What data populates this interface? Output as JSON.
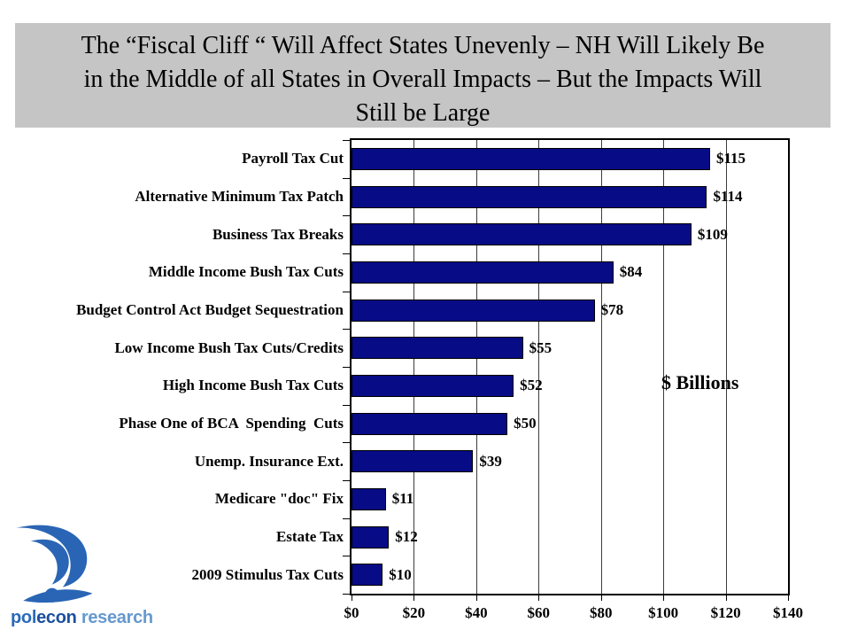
{
  "slide": {
    "title_lines": [
      "The “Fiscal Cliff “ Will Affect States Unevenly – NH Will Likely Be",
      "in the Middle of all States in Overall Impacts – But the Impacts Will",
      "Still be Large"
    ],
    "title_bg_color": "#c5c5c5"
  },
  "chart_data": {
    "type": "bar",
    "orientation": "horizontal",
    "title": "",
    "xlabel": "",
    "ylabel": "",
    "categories": [
      "Payroll Tax Cut",
      "Alternative Minimum Tax Patch",
      "Business Tax Breaks",
      "Middle Income Bush Tax Cuts",
      "Budget Control Act Budget Sequestration",
      "Low Income Bush Tax Cuts/Credits",
      "High Income Bush Tax Cuts",
      "Phase One of BCA  Spending  Cuts",
      "Unemp. Insurance Ext.",
      "Medicare \"doc\" Fix",
      "Estate Tax",
      "2009 Stimulus Tax Cuts"
    ],
    "values": [
      115,
      114,
      109,
      84,
      78,
      55,
      52,
      50,
      39,
      11,
      12,
      10
    ],
    "value_labels": [
      "$115",
      "$114",
      "$109",
      "$84",
      "$78",
      "$55",
      "$52",
      "$50",
      "$39",
      "$11",
      "$12",
      "$10"
    ],
    "x_tick_labels": [
      "$0",
      "$20",
      "$40",
      "$60",
      "$80",
      "$100",
      "$120",
      "$140"
    ],
    "xlim": [
      0,
      140
    ],
    "x_tick_step": 20,
    "annotation": "$ Billions",
    "bar_color": "#070b86",
    "grid": true,
    "legend_position": "none"
  },
  "logo": {
    "parts": [
      {
        "text": "pol",
        "color": "#2a6ab8"
      },
      {
        "text": "econ",
        "color": "#1c4f9e"
      },
      {
        "text": " research",
        "color": "#6699cf"
      }
    ],
    "mark_color": "#2a65b5"
  }
}
